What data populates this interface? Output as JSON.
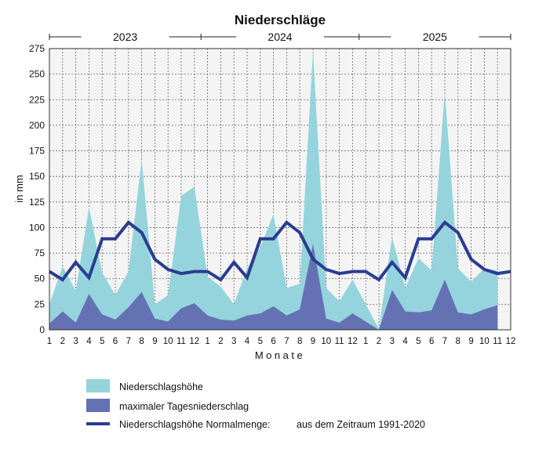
{
  "chart_data": {
    "type": "area",
    "title": "Niederschläge",
    "xlabel": "Monate",
    "ylabel": "in mm",
    "ylim": [
      0,
      275
    ],
    "yticks": [
      0,
      25,
      50,
      75,
      100,
      125,
      150,
      175,
      200,
      225,
      250,
      275
    ],
    "years": [
      "2023",
      "2024",
      "2025"
    ],
    "x_tick_labels": [
      "1",
      "2",
      "3",
      "4",
      "5",
      "6",
      "7",
      "8",
      "9",
      "10",
      "11",
      "12",
      "1",
      "2",
      "3",
      "4",
      "5",
      "6",
      "7",
      "8",
      "9",
      "10",
      "11",
      "12",
      "1",
      "2",
      "3",
      "4",
      "5",
      "6",
      "7",
      "8",
      "9",
      "10",
      "11",
      "12"
    ],
    "grid": true,
    "legend_position": "bottom",
    "series": [
      {
        "name": "Niederschlagshöhe",
        "type": "area",
        "color": "#95d4dc",
        "values": [
          25,
          62,
          38,
          120,
          56,
          34,
          57,
          167,
          25,
          34,
          131,
          140,
          52,
          42,
          25,
          60,
          81,
          113,
          41,
          45,
          273,
          41,
          28,
          49,
          25,
          1,
          91,
          41,
          70,
          58,
          233,
          60,
          47,
          60,
          58
        ]
      },
      {
        "name": "maximaler Tagesniederschlag",
        "type": "area",
        "color": "#6472b4",
        "values": [
          6,
          18,
          7,
          35,
          15,
          10,
          22,
          37,
          11,
          8,
          21,
          26,
          14,
          10,
          9,
          14,
          16,
          23,
          14,
          20,
          84,
          11,
          7,
          16,
          8,
          0,
          39,
          18,
          17,
          19,
          49,
          17,
          15,
          20,
          24
        ]
      },
      {
        "name": "Niederschlagshöhe Normalmenge:",
        "type": "line",
        "color": "#2b3d8f",
        "values": [
          57,
          49,
          66,
          51,
          89,
          89,
          105,
          95,
          69,
          59,
          55,
          57,
          57,
          49,
          66,
          51,
          89,
          89,
          105,
          95,
          69,
          59,
          55,
          57,
          57,
          49,
          66,
          51,
          89,
          89,
          105,
          95,
          69,
          59,
          55,
          57
        ]
      }
    ],
    "legend_note": "aus dem Zeitraum 1991-2020"
  }
}
